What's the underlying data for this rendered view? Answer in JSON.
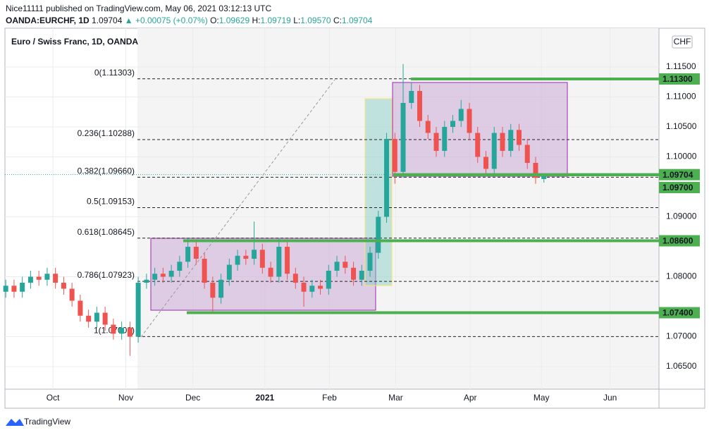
{
  "header": {
    "publisher": "Nice11111 published on TradingView.com, May 06, 2021 03:12:13 UTC",
    "symbol": "OANDA:EURCHF, 1D",
    "last": "1.09704",
    "change": "▲ +0.00075 (+0.07%)",
    "ohlc": [
      {
        "key": "O:",
        "value": "1.09629"
      },
      {
        "key": "H:",
        "value": "1.09719"
      },
      {
        "key": "L:",
        "value": "1.09570"
      },
      {
        "key": "C:",
        "value": "1.09704"
      }
    ]
  },
  "chart_data": {
    "type": "candlestick",
    "title": "Euro / Swiss Franc, 1D, OANDA",
    "currency": "CHF",
    "up_color": "#26a69a",
    "down_color": "#ef5350",
    "categories": [
      null,
      null,
      null,
      null,
      null,
      null,
      null,
      null,
      null,
      null,
      null,
      null,
      null,
      null,
      null,
      null,
      null,
      null,
      null,
      null,
      null,
      null,
      null,
      null,
      null,
      null,
      null,
      null,
      null,
      null,
      null,
      null,
      null,
      null,
      null,
      null,
      null,
      null,
      null,
      null,
      null,
      null,
      null,
      null,
      null,
      null,
      null,
      null,
      null,
      null,
      null,
      null,
      null,
      null,
      null,
      null,
      null,
      null,
      null,
      null,
      null,
      null,
      null,
      null,
      null,
      null
    ],
    "open": [
      1.0775,
      1.0785,
      1.0775,
      1.079,
      1.08,
      1.0795,
      1.0805,
      1.079,
      1.078,
      1.076,
      1.0735,
      1.0725,
      1.074,
      1.072,
      1.0705,
      1.0715,
      1.07,
      1.079,
      1.0795,
      1.0805,
      1.08,
      1.081,
      1.0825,
      1.085,
      1.083,
      1.079,
      1.0765,
      1.0795,
      1.082,
      1.0835,
      1.083,
      1.0845,
      1.0815,
      1.08,
      1.085,
      1.0805,
      1.079,
      1.0775,
      1.0785,
      1.078,
      1.081,
      1.0825,
      1.0815,
      1.0795,
      1.081,
      1.084,
      1.09,
      1.103,
      1.0975,
      1.109,
      1.111,
      1.106,
      1.104,
      1.101,
      1.105,
      1.106,
      1.108,
      1.104,
      1.1,
      1.098,
      1.104,
      1.101,
      1.1045,
      1.102,
      1.099,
      1.0963
    ],
    "high": [
      1.0795,
      1.0795,
      1.08,
      1.081,
      1.081,
      1.0815,
      1.0815,
      1.08,
      1.079,
      1.077,
      1.0745,
      1.075,
      1.075,
      1.073,
      1.0725,
      1.0725,
      1.08,
      1.0805,
      1.0815,
      1.0815,
      1.082,
      1.0835,
      1.0865,
      1.086,
      1.084,
      1.08,
      1.0805,
      1.083,
      1.0845,
      1.0845,
      1.0892,
      1.0855,
      1.0825,
      1.0865,
      1.086,
      1.0815,
      1.08,
      1.0795,
      1.0795,
      1.082,
      1.0835,
      1.0835,
      1.0825,
      1.082,
      1.085,
      1.091,
      1.104,
      1.104,
      1.1155,
      1.1125,
      1.112,
      1.107,
      1.105,
      1.106,
      1.107,
      1.1095,
      1.109,
      1.105,
      1.101,
      1.105,
      1.105,
      1.1055,
      1.1055,
      1.103,
      1.1,
      1.0972
    ],
    "low": [
      1.0765,
      1.0765,
      1.0765,
      1.078,
      1.0785,
      1.0785,
      1.078,
      1.077,
      1.075,
      1.0725,
      1.0715,
      1.0715,
      1.071,
      1.0695,
      1.0695,
      1.0668,
      1.069,
      1.078,
      1.0785,
      1.079,
      1.079,
      1.08,
      1.0815,
      1.082,
      1.078,
      1.074,
      1.0755,
      1.0785,
      1.081,
      1.082,
      1.082,
      1.0805,
      1.079,
      1.079,
      1.0795,
      1.078,
      1.075,
      1.0765,
      1.077,
      1.077,
      1.08,
      1.0805,
      1.0785,
      1.0785,
      1.08,
      1.083,
      1.089,
      1.0955,
      1.0965,
      1.108,
      1.105,
      1.103,
      1.1,
      1.1,
      1.104,
      1.105,
      1.103,
      1.099,
      1.097,
      1.097,
      1.1,
      1.1,
      1.101,
      1.098,
      1.0955,
      1.0957
    ],
    "close": [
      1.0785,
      1.0775,
      1.079,
      1.08,
      1.0795,
      1.0805,
      1.079,
      1.078,
      1.076,
      1.0735,
      1.0725,
      1.074,
      1.072,
      1.0705,
      1.0715,
      1.07,
      1.079,
      1.0795,
      1.0805,
      1.08,
      1.081,
      1.0825,
      1.085,
      1.083,
      1.079,
      1.0765,
      1.0795,
      1.082,
      1.0835,
      1.083,
      1.0845,
      1.0815,
      1.08,
      1.085,
      1.0805,
      1.079,
      1.0775,
      1.0785,
      1.078,
      1.081,
      1.0825,
      1.0815,
      1.0795,
      1.081,
      1.084,
      1.09,
      1.103,
      1.0975,
      1.109,
      1.111,
      1.106,
      1.104,
      1.101,
      1.105,
      1.106,
      1.108,
      1.104,
      1.1,
      1.098,
      1.104,
      1.101,
      1.1045,
      1.102,
      1.099,
      1.0965,
      1.097
    ],
    "xlim": [
      -0.1,
      78.9
    ],
    "xticks": [
      {
        "value": 5.7,
        "label": "Oct"
      },
      {
        "value": 14.5,
        "label": "Nov"
      },
      {
        "value": 22.6,
        "label": "Dec"
      },
      {
        "value": 31.3,
        "label": "2021"
      },
      {
        "value": 39.1,
        "label": "Feb"
      },
      {
        "value": 47.1,
        "label": "Mar"
      },
      {
        "value": 56.1,
        "label": "Apr"
      },
      {
        "value": 64.7,
        "label": "May"
      },
      {
        "value": 73.0,
        "label": "Jun"
      }
    ],
    "ylim": [
      1.06124,
      1.12147
    ],
    "yticks": [
      {
        "value": 1.065,
        "label": "1.06500"
      },
      {
        "value": 1.07,
        "label": "1.07000"
      },
      {
        "value": 1.08,
        "label": "1.08000"
      },
      {
        "value": 1.09,
        "label": "1.09000"
      },
      {
        "value": 1.1,
        "label": "1.10000"
      },
      {
        "value": 1.105,
        "label": "1.10500"
      },
      {
        "value": 1.11,
        "label": "1.11000"
      },
      {
        "value": 1.115,
        "label": "1.11500"
      }
    ],
    "grid": true,
    "fib_levels": [
      {
        "label": "0(1.11303)",
        "value": 1.11303
      },
      {
        "label": "0.236(1.10288)",
        "value": 1.10288
      },
      {
        "label": "0.382(1.09660)",
        "value": 1.0966
      },
      {
        "label": "0.5(1.09153)",
        "value": 1.09153
      },
      {
        "label": "0.618(1.08645)",
        "value": 1.08645
      },
      {
        "label": "0.786(1.07923)",
        "value": 1.07923
      },
      {
        "label": "1(1.07002)",
        "value": 1.07002
      }
    ],
    "levels": [
      {
        "value": 1.113,
        "label": "1.11300"
      },
      {
        "value": 1.09704,
        "label": "1.09704"
      },
      {
        "value": 1.097,
        "label": "1.09700"
      },
      {
        "value": 1.086,
        "label": "1.08600"
      },
      {
        "value": 1.074,
        "label": "1.07400"
      }
    ]
  },
  "footer": {
    "brand": "TradingView"
  }
}
